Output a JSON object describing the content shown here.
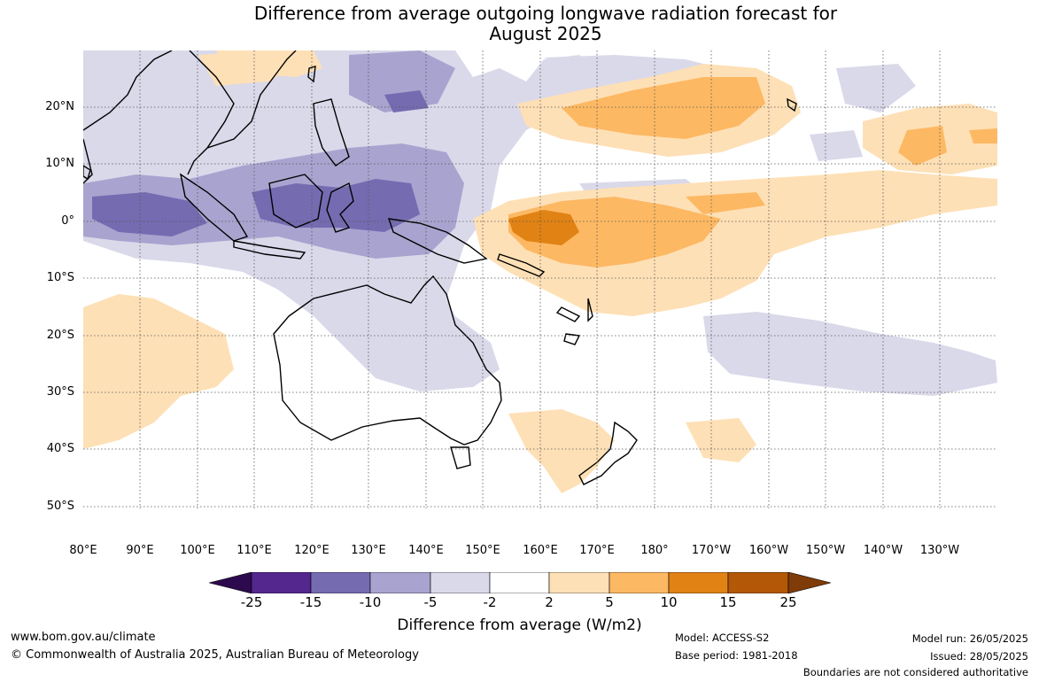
{
  "title_line1": "Difference from average outgoing longwave radiation forecast for",
  "title_line2": "August 2025",
  "lat_labels": [
    "20°N",
    "10°N",
    "0°",
    "10°S",
    "20°S",
    "30°S",
    "40°S",
    "50°S"
  ],
  "lon_labels": [
    "80°E",
    "90°E",
    "100°E",
    "110°E",
    "120°E",
    "130°E",
    "140°E",
    "150°E",
    "160°E",
    "170°E",
    "180°",
    "170°W",
    "160°W",
    "150°W",
    "140°W",
    "130°W"
  ],
  "colorbar": {
    "colors": [
      "#2d0a4e",
      "#54278f",
      "#756bb1",
      "#a9a3cf",
      "#d9d9ea",
      "#ffffff",
      "#fee0b6",
      "#fdb863",
      "#e08214",
      "#b35806",
      "#7f3b08"
    ],
    "ticks": [
      "-25",
      "-15",
      "-10",
      "-5",
      "-2",
      "2",
      "5",
      "10",
      "15",
      "25"
    ],
    "label": "Difference from average (W/m2)"
  },
  "footer": {
    "website": "www.bom.gov.au/climate",
    "copyright": "© Commonwealth of Australia 2025, Australian Bureau of Meteorology",
    "model": "Model: ACCESS-S2",
    "base_period": "Base period: 1981-2018",
    "model_run": "Model run: 26/05/2025",
    "issued": "Issued: 28/05/2025",
    "disclaimer": "Boundaries are not considered authoritative"
  }
}
